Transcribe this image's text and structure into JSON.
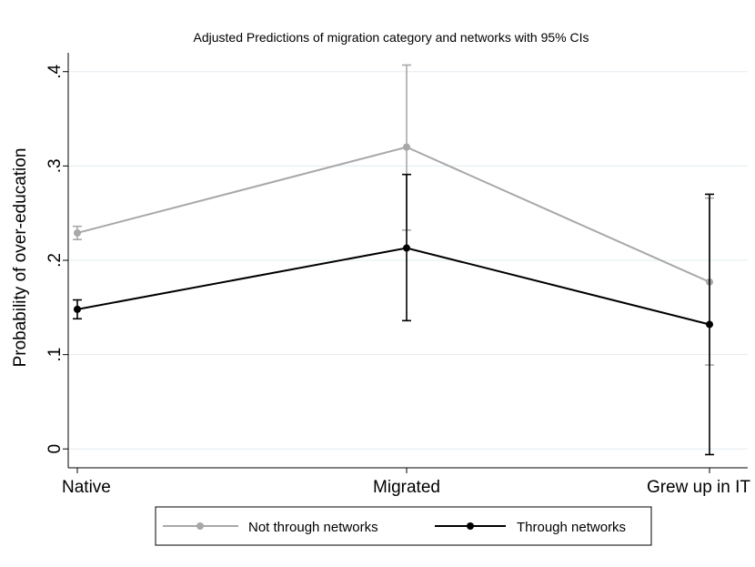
{
  "chart_data": {
    "type": "line",
    "title": "Adjusted Predictions of migration category and networks with 95% CIs",
    "xlabel": "",
    "ylabel": "Probability of over-education",
    "categories": [
      "Native",
      "Migrated",
      "Grew up in IT"
    ],
    "ylim": [
      -0.02,
      0.42
    ],
    "yticks": [
      0,
      0.1,
      0.2,
      0.3,
      0.4
    ],
    "ytick_labels": [
      "0",
      ".1",
      ".2",
      ".3",
      ".4"
    ],
    "grid": true,
    "legend_position": "bottom",
    "series": [
      {
        "name": "Not through networks",
        "color": "#a8a8a8",
        "values": [
          0.229,
          0.32,
          0.177
        ],
        "ci_low": [
          0.222,
          0.232,
          0.089
        ],
        "ci_high": [
          0.236,
          0.407,
          0.266
        ]
      },
      {
        "name": "Through networks",
        "color": "#000000",
        "values": [
          0.148,
          0.213,
          0.132
        ],
        "ci_low": [
          0.138,
          0.136,
          -0.006
        ],
        "ci_high": [
          0.158,
          0.291,
          0.27
        ]
      }
    ]
  }
}
